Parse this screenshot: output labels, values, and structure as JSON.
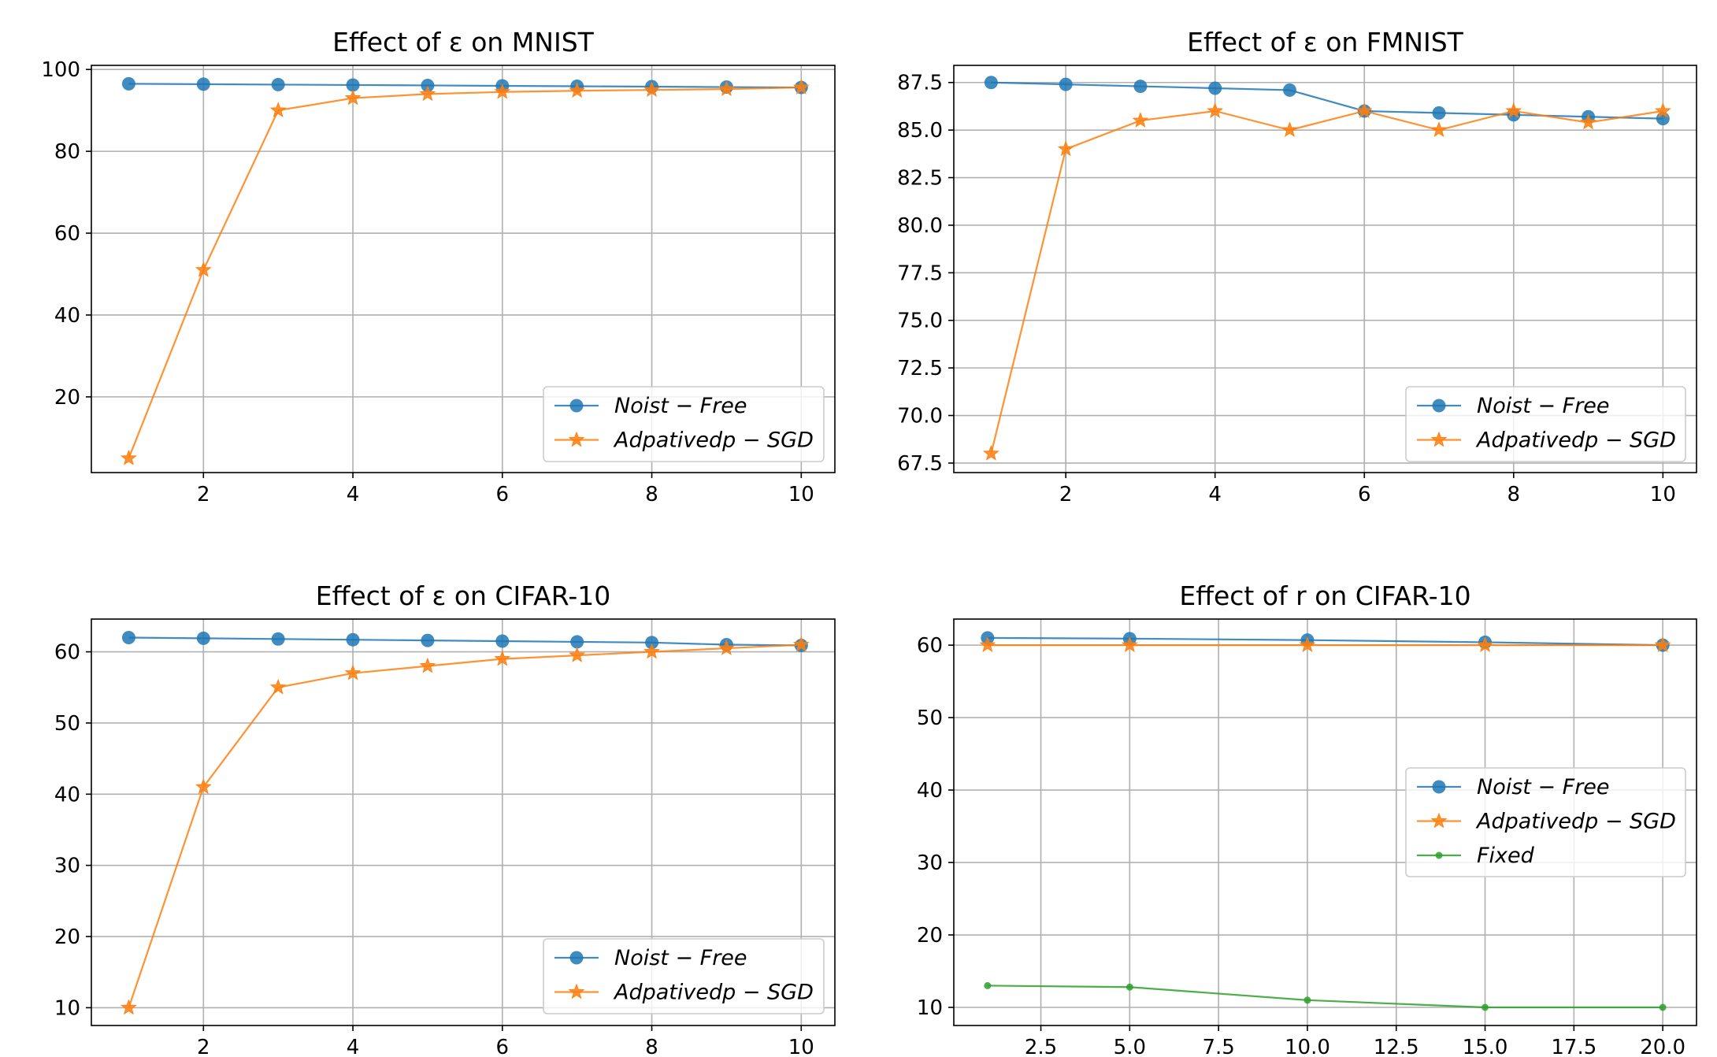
{
  "chart_data": [
    {
      "type": "line",
      "title": "Effect of ε on MNIST",
      "xlabel": "",
      "ylabel": "",
      "x": [
        1,
        2,
        3,
        4,
        5,
        6,
        7,
        8,
        9,
        10
      ],
      "xlim": [
        0.5,
        10.45
      ],
      "ylim": [
        1.5,
        101
      ],
      "xticks": [
        2,
        4,
        6,
        8,
        10
      ],
      "yticks": [
        20,
        40,
        60,
        80,
        100
      ],
      "grid": true,
      "legend_position": "lower right",
      "series": [
        {
          "name": "Noist − Free",
          "marker": "circle",
          "color": "#1f77b4",
          "values": [
            96.5,
            96.4,
            96.3,
            96.2,
            96.1,
            96.0,
            95.9,
            95.8,
            95.7,
            95.6
          ]
        },
        {
          "name": "Adpativedp − SGD",
          "marker": "star",
          "color": "#ff7f0e",
          "values": [
            5.0,
            51.0,
            90.0,
            93.0,
            94.0,
            94.5,
            94.8,
            95.0,
            95.2,
            95.6
          ]
        }
      ]
    },
    {
      "type": "line",
      "title": "Effect of ε on FMNIST",
      "xlabel": "",
      "ylabel": "",
      "x": [
        1,
        2,
        3,
        4,
        5,
        6,
        7,
        8,
        9,
        10
      ],
      "xlim": [
        0.5,
        10.45
      ],
      "ylim": [
        67.0,
        88.4
      ],
      "xticks": [
        2,
        4,
        6,
        8,
        10
      ],
      "yticks": [
        67.5,
        70.0,
        72.5,
        75.0,
        77.5,
        80.0,
        82.5,
        85.0,
        87.5
      ],
      "ytick_decimals": 1,
      "grid": true,
      "legend_position": "lower right",
      "series": [
        {
          "name": "Noist − Free",
          "marker": "circle",
          "color": "#1f77b4",
          "values": [
            87.5,
            87.4,
            87.3,
            87.2,
            87.1,
            86.0,
            85.9,
            85.8,
            85.7,
            85.6
          ]
        },
        {
          "name": "Adpativedp − SGD",
          "marker": "star",
          "color": "#ff7f0e",
          "values": [
            68.0,
            84.0,
            85.5,
            86.0,
            85.0,
            86.0,
            85.0,
            86.0,
            85.4,
            86.0
          ]
        }
      ]
    },
    {
      "type": "line",
      "title": "Effect of ε on CIFAR-10",
      "xlabel": "",
      "ylabel": "",
      "x": [
        1,
        2,
        3,
        4,
        5,
        6,
        7,
        8,
        9,
        10
      ],
      "xlim": [
        0.5,
        10.45
      ],
      "ylim": [
        7.5,
        64.6
      ],
      "xticks": [
        2,
        4,
        6,
        8,
        10
      ],
      "yticks": [
        10,
        20,
        30,
        40,
        50,
        60
      ],
      "grid": true,
      "legend_position": "lower right",
      "series": [
        {
          "name": "Noist − Free",
          "marker": "circle",
          "color": "#1f77b4",
          "values": [
            62.0,
            61.9,
            61.8,
            61.7,
            61.6,
            61.5,
            61.4,
            61.3,
            61.0,
            60.9
          ]
        },
        {
          "name": "Adpativedp − SGD",
          "marker": "star",
          "color": "#ff7f0e",
          "values": [
            10.0,
            41.0,
            55.0,
            57.0,
            58.0,
            59.0,
            59.5,
            60.0,
            60.5,
            61.0
          ]
        }
      ]
    },
    {
      "type": "line",
      "title": "Effect of r on CIFAR-10",
      "xlabel": "",
      "ylabel": "",
      "x": [
        1,
        5,
        10,
        15,
        20
      ],
      "xlim": [
        0.05,
        20.95
      ],
      "ylim": [
        7.5,
        63.6
      ],
      "xticks": [
        2.5,
        5.0,
        7.5,
        10.0,
        12.5,
        15.0,
        17.5,
        20.0
      ],
      "xtick_decimals": 1,
      "yticks": [
        10,
        20,
        30,
        40,
        50,
        60
      ],
      "grid": true,
      "legend_position": "center right",
      "series": [
        {
          "name": "Noist − Free",
          "marker": "circle",
          "color": "#1f77b4",
          "values": [
            61.0,
            60.9,
            60.7,
            60.4,
            60.0
          ]
        },
        {
          "name": "Adpativedp − SGD",
          "marker": "star",
          "color": "#ff7f0e",
          "values": [
            60.0,
            60.0,
            60.0,
            60.0,
            60.0
          ]
        },
        {
          "name": "Fixed",
          "marker": "dot",
          "color": "#2ca02c",
          "values": [
            13.0,
            12.8,
            11.0,
            10.0,
            10.0
          ]
        }
      ]
    }
  ]
}
